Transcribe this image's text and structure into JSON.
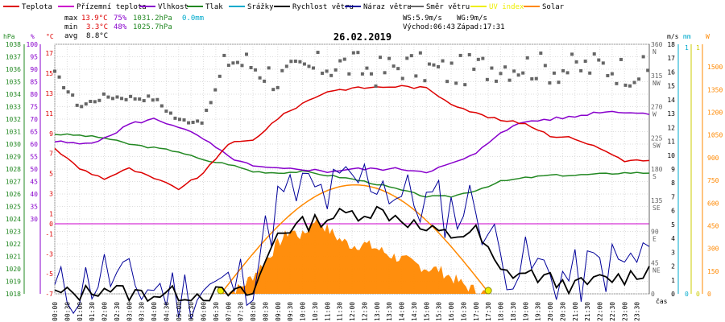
{
  "chart_data": {
    "type": "line",
    "title": "26.02.2019",
    "legend": [
      {
        "name": "Teplota",
        "color": "#dd0000"
      },
      {
        "name": "Přízemní teplota",
        "color": "#cc00cc"
      },
      {
        "name": "Vlhkost",
        "color": "#8800cc"
      },
      {
        "name": "Tlak",
        "color": "#228822"
      },
      {
        "name": "Srážky",
        "color": "#00aacc"
      },
      {
        "name": "Rychlost větru",
        "color": "#000000"
      },
      {
        "name": "Náraz větru",
        "color": "#000099"
      },
      {
        "name": "Směr větru",
        "color": "#666666"
      },
      {
        "name": "UV index",
        "color": "#eeee00"
      },
      {
        "name": "Solar",
        "color": "#ff8800"
      }
    ],
    "stats": {
      "max": {
        "label": "max",
        "temp": "13.9°C",
        "hum": "75%",
        "press": "1031.2hPa",
        "rain": "0.0mm"
      },
      "min": {
        "label": "min",
        "temp": "3.3°C",
        "hum": "48%",
        "press": "1025.7hPa"
      },
      "avg": {
        "label": "avg",
        "temp": "8.8°C"
      },
      "ws": "WS:5.9m/s",
      "wg": "WG:9m/s",
      "sunrise": "Východ:06:43",
      "sunset": "Západ:17:31"
    },
    "axes": {
      "hpa": {
        "title": "hPa",
        "color": "#228822",
        "range": [
          1018,
          1038
        ],
        "ticks": [
          "1038",
          "1037",
          "1036",
          "1035",
          "1034",
          "1033",
          "1032",
          "1031",
          "1030",
          "1029",
          "1028",
          "1027",
          "1026",
          "1025",
          "1024",
          "1023",
          "1022",
          "1021",
          "1020",
          "1019",
          "1018"
        ]
      },
      "pct": {
        "title": "%",
        "color": "#8800cc",
        "range": [
          0,
          100
        ],
        "ticks": [
          "100",
          "95",
          "90",
          "85",
          "80",
          "75",
          "70",
          "65",
          "60",
          "55",
          "50",
          "45",
          "40",
          "35",
          "30"
        ]
      },
      "degC": {
        "title": "°C",
        "color": "#dd0000",
        "ticks": [
          "17",
          "15",
          "13",
          "11",
          "9",
          "7",
          "5",
          "3",
          "1",
          "0",
          "-1",
          "-3",
          "-5",
          "-7"
        ]
      },
      "dir": {
        "ticks": [
          "360",
          "315",
          "270",
          "225",
          "180",
          "135",
          "90",
          "45",
          "0"
        ],
        "labels": [
          "N",
          "NW",
          "W",
          "SW",
          "S",
          "SE",
          "E",
          "NE"
        ]
      },
      "ms": {
        "title": "m/s",
        "color": "#000000",
        "range": [
          0,
          18
        ],
        "ticks": [
          "18",
          "17",
          "16",
          "15",
          "14",
          "13",
          "12",
          "11",
          "10",
          "9",
          "8",
          "7",
          "6",
          "5",
          "4",
          "3",
          "2",
          "1",
          "0"
        ]
      },
      "mm": {
        "title": "mm",
        "color": "#00aacc",
        "ticks": [
          "1",
          "0"
        ]
      },
      "uv": {
        "ticks": [
          "1",
          "0"
        ]
      },
      "wm2": {
        "title": "W",
        "color": "#ff8800",
        "ticks": [
          "1500",
          "1350",
          "1200",
          "1050",
          "900",
          "750",
          "600",
          "450",
          "300",
          "150",
          "0"
        ]
      }
    },
    "time_unit": "čas",
    "xticks": [
      "00:00",
      "00:30",
      "01:00",
      "01:30",
      "02:00",
      "02:30",
      "03:00",
      "03:30",
      "04:00",
      "04:30",
      "05:00",
      "05:30",
      "06:00",
      "06:30",
      "07:00",
      "07:30",
      "08:00",
      "08:30",
      "09:00",
      "09:30",
      "10:00",
      "10:30",
      "11:00",
      "11:30",
      "12:00",
      "12:30",
      "13:00",
      "13:30",
      "14:00",
      "14:30",
      "15:00",
      "15:30",
      "16:00",
      "16:30",
      "17:00",
      "17:30",
      "18:00",
      "18:30",
      "19:00",
      "19:30",
      "20:00",
      "20:30",
      "21:00",
      "21:30",
      "22:00",
      "22:30",
      "23:00",
      "23:30"
    ],
    "series": [
      {
        "name": "Teplota",
        "unit": "°C",
        "hours": [
          0,
          1,
          2,
          3,
          4,
          5,
          6,
          7,
          8,
          9,
          10,
          11,
          12,
          13,
          14,
          15,
          16,
          17,
          18,
          19,
          20,
          21,
          22,
          23,
          24
        ],
        "values": [
          7.5,
          5.5,
          4.5,
          5.5,
          4.5,
          3.5,
          5.0,
          8.0,
          8.3,
          10.5,
          12.0,
          13.2,
          13.5,
          13.6,
          13.7,
          13.5,
          12.0,
          11.0,
          10.3,
          10.0,
          8.8,
          8.5,
          7.5,
          6.3,
          6.3
        ]
      },
      {
        "name": "Vlhkost",
        "unit": "%",
        "hours": [
          0,
          1,
          2,
          3,
          4,
          5,
          6,
          7,
          8,
          9,
          10,
          11,
          12,
          13,
          14,
          15,
          16,
          17,
          18,
          19,
          20,
          21,
          22,
          23,
          24
        ],
        "values": [
          61,
          60,
          62,
          68,
          70,
          67,
          62,
          55,
          51,
          50,
          50,
          49,
          50,
          50,
          50,
          49,
          52,
          56,
          65,
          69,
          70,
          71,
          73,
          73,
          72
        ]
      },
      {
        "name": "Tlak",
        "unit": "hPa",
        "hours": [
          0,
          1,
          2,
          3,
          4,
          5,
          6,
          7,
          8,
          9,
          10,
          11,
          12,
          13,
          14,
          15,
          16,
          17,
          18,
          19,
          20,
          21,
          22,
          23,
          24
        ],
        "values": [
          1030.8,
          1030.7,
          1030.5,
          1030.0,
          1029.7,
          1029.4,
          1028.7,
          1028.4,
          1027.8,
          1027.7,
          1027.8,
          1027.5,
          1027.2,
          1026.8,
          1026.3,
          1025.8,
          1025.8,
          1026.3,
          1027.0,
          1027.3,
          1027.5,
          1027.5,
          1027.6,
          1027.7,
          1027.7
        ]
      },
      {
        "name": "Směr větru",
        "unit": "°",
        "hours": [
          0,
          1,
          2,
          3,
          4,
          5,
          6,
          7,
          8,
          9,
          10,
          11,
          12,
          13,
          14,
          15,
          16,
          17,
          18,
          19,
          20,
          21,
          22,
          23,
          24
        ],
        "values": [
          318,
          270,
          285,
          283,
          282,
          250,
          250,
          340,
          330,
          310,
          322,
          330,
          330,
          320,
          330,
          325,
          320,
          325,
          330,
          330,
          325,
          325,
          330,
          322,
          320
        ]
      },
      {
        "name": "Rychlost větru",
        "unit": "m/s",
        "hours": [
          0,
          1,
          2,
          3,
          4,
          5,
          6,
          7,
          8,
          9,
          10,
          11,
          12,
          13,
          14,
          15,
          16,
          17,
          18,
          19,
          20,
          21,
          22,
          23,
          24
        ],
        "values": [
          0,
          0,
          0.5,
          0,
          0,
          0,
          0,
          0,
          0,
          4.5,
          5.0,
          5.5,
          5.8,
          6.0,
          5.5,
          4.5,
          4.2,
          4.5,
          1.5,
          1.5,
          1.0,
          0.5,
          1.0,
          1.2,
          1.8
        ]
      },
      {
        "name": "Náraz větru",
        "unit": "m/s",
        "hours": [
          0,
          1,
          2,
          3,
          4,
          5,
          6,
          7,
          8,
          9,
          10,
          11,
          12,
          13,
          14,
          15,
          16,
          17,
          18,
          19,
          20,
          21,
          22,
          23,
          24
        ],
        "values": [
          0,
          0.5,
          1.5,
          0.5,
          0.5,
          0,
          0.5,
          0.5,
          1.5,
          6.5,
          7.5,
          7.0,
          8.0,
          8.5,
          7.0,
          6.5,
          6.0,
          6.5,
          2.5,
          2.0,
          1.5,
          1.0,
          2.0,
          2.0,
          3.0
        ]
      },
      {
        "name": "Solar",
        "unit": "W/m2",
        "hours": [
          6.7,
          7.5,
          8,
          8.5,
          9,
          9.5,
          10,
          10.5,
          11,
          11.5,
          12,
          12.5,
          13,
          13.5,
          14,
          14.5,
          15,
          15.5,
          16,
          16.5,
          17,
          17.5
        ],
        "values": [
          0,
          40,
          120,
          220,
          330,
          420,
          380,
          500,
          430,
          360,
          320,
          330,
          300,
          260,
          230,
          200,
          170,
          160,
          110,
          60,
          20,
          0
        ]
      },
      {
        "name": "UV index",
        "unit": "",
        "hours": [
          6.7,
          17.5
        ],
        "values": [
          0,
          0
        ]
      }
    ]
  }
}
